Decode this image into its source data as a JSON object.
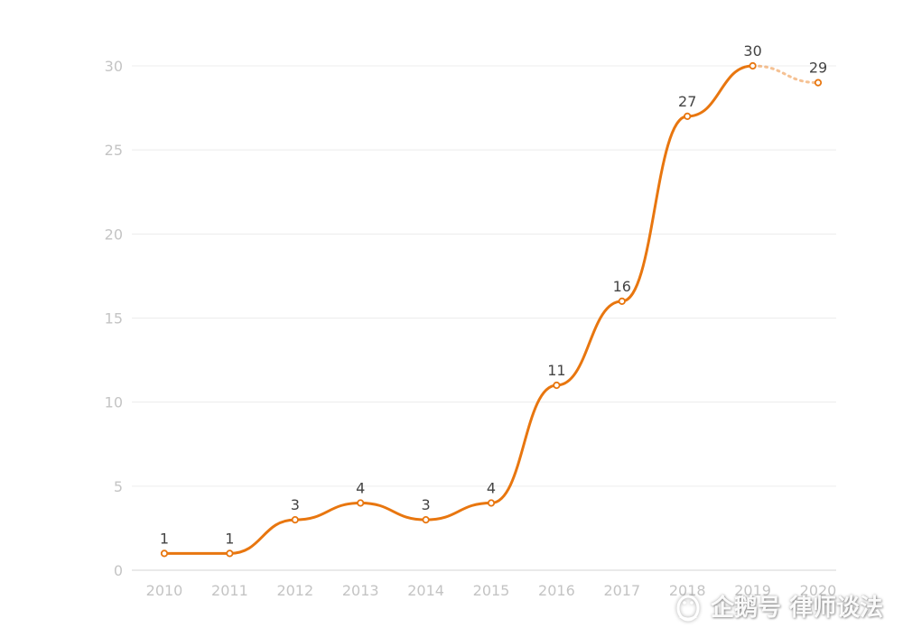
{
  "chart_data": {
    "type": "line",
    "x": [
      "2010",
      "2011",
      "2012",
      "2013",
      "2014",
      "2015",
      "2016",
      "2017",
      "2018",
      "2019",
      "2020"
    ],
    "series": [
      {
        "values": [
          1,
          1,
          3,
          4,
          3,
          4,
          11,
          16,
          27,
          30,
          29
        ],
        "color": "#e8760f"
      }
    ],
    "estimated_from_index": 9,
    "ylim": [
      0,
      30
    ],
    "yticks": [
      0,
      5,
      10,
      15,
      20,
      25,
      30
    ],
    "grid": true,
    "data_labels": true
  },
  "watermark": {
    "text": "企鹅号 律师谈法",
    "icon": "penguin-icon"
  }
}
